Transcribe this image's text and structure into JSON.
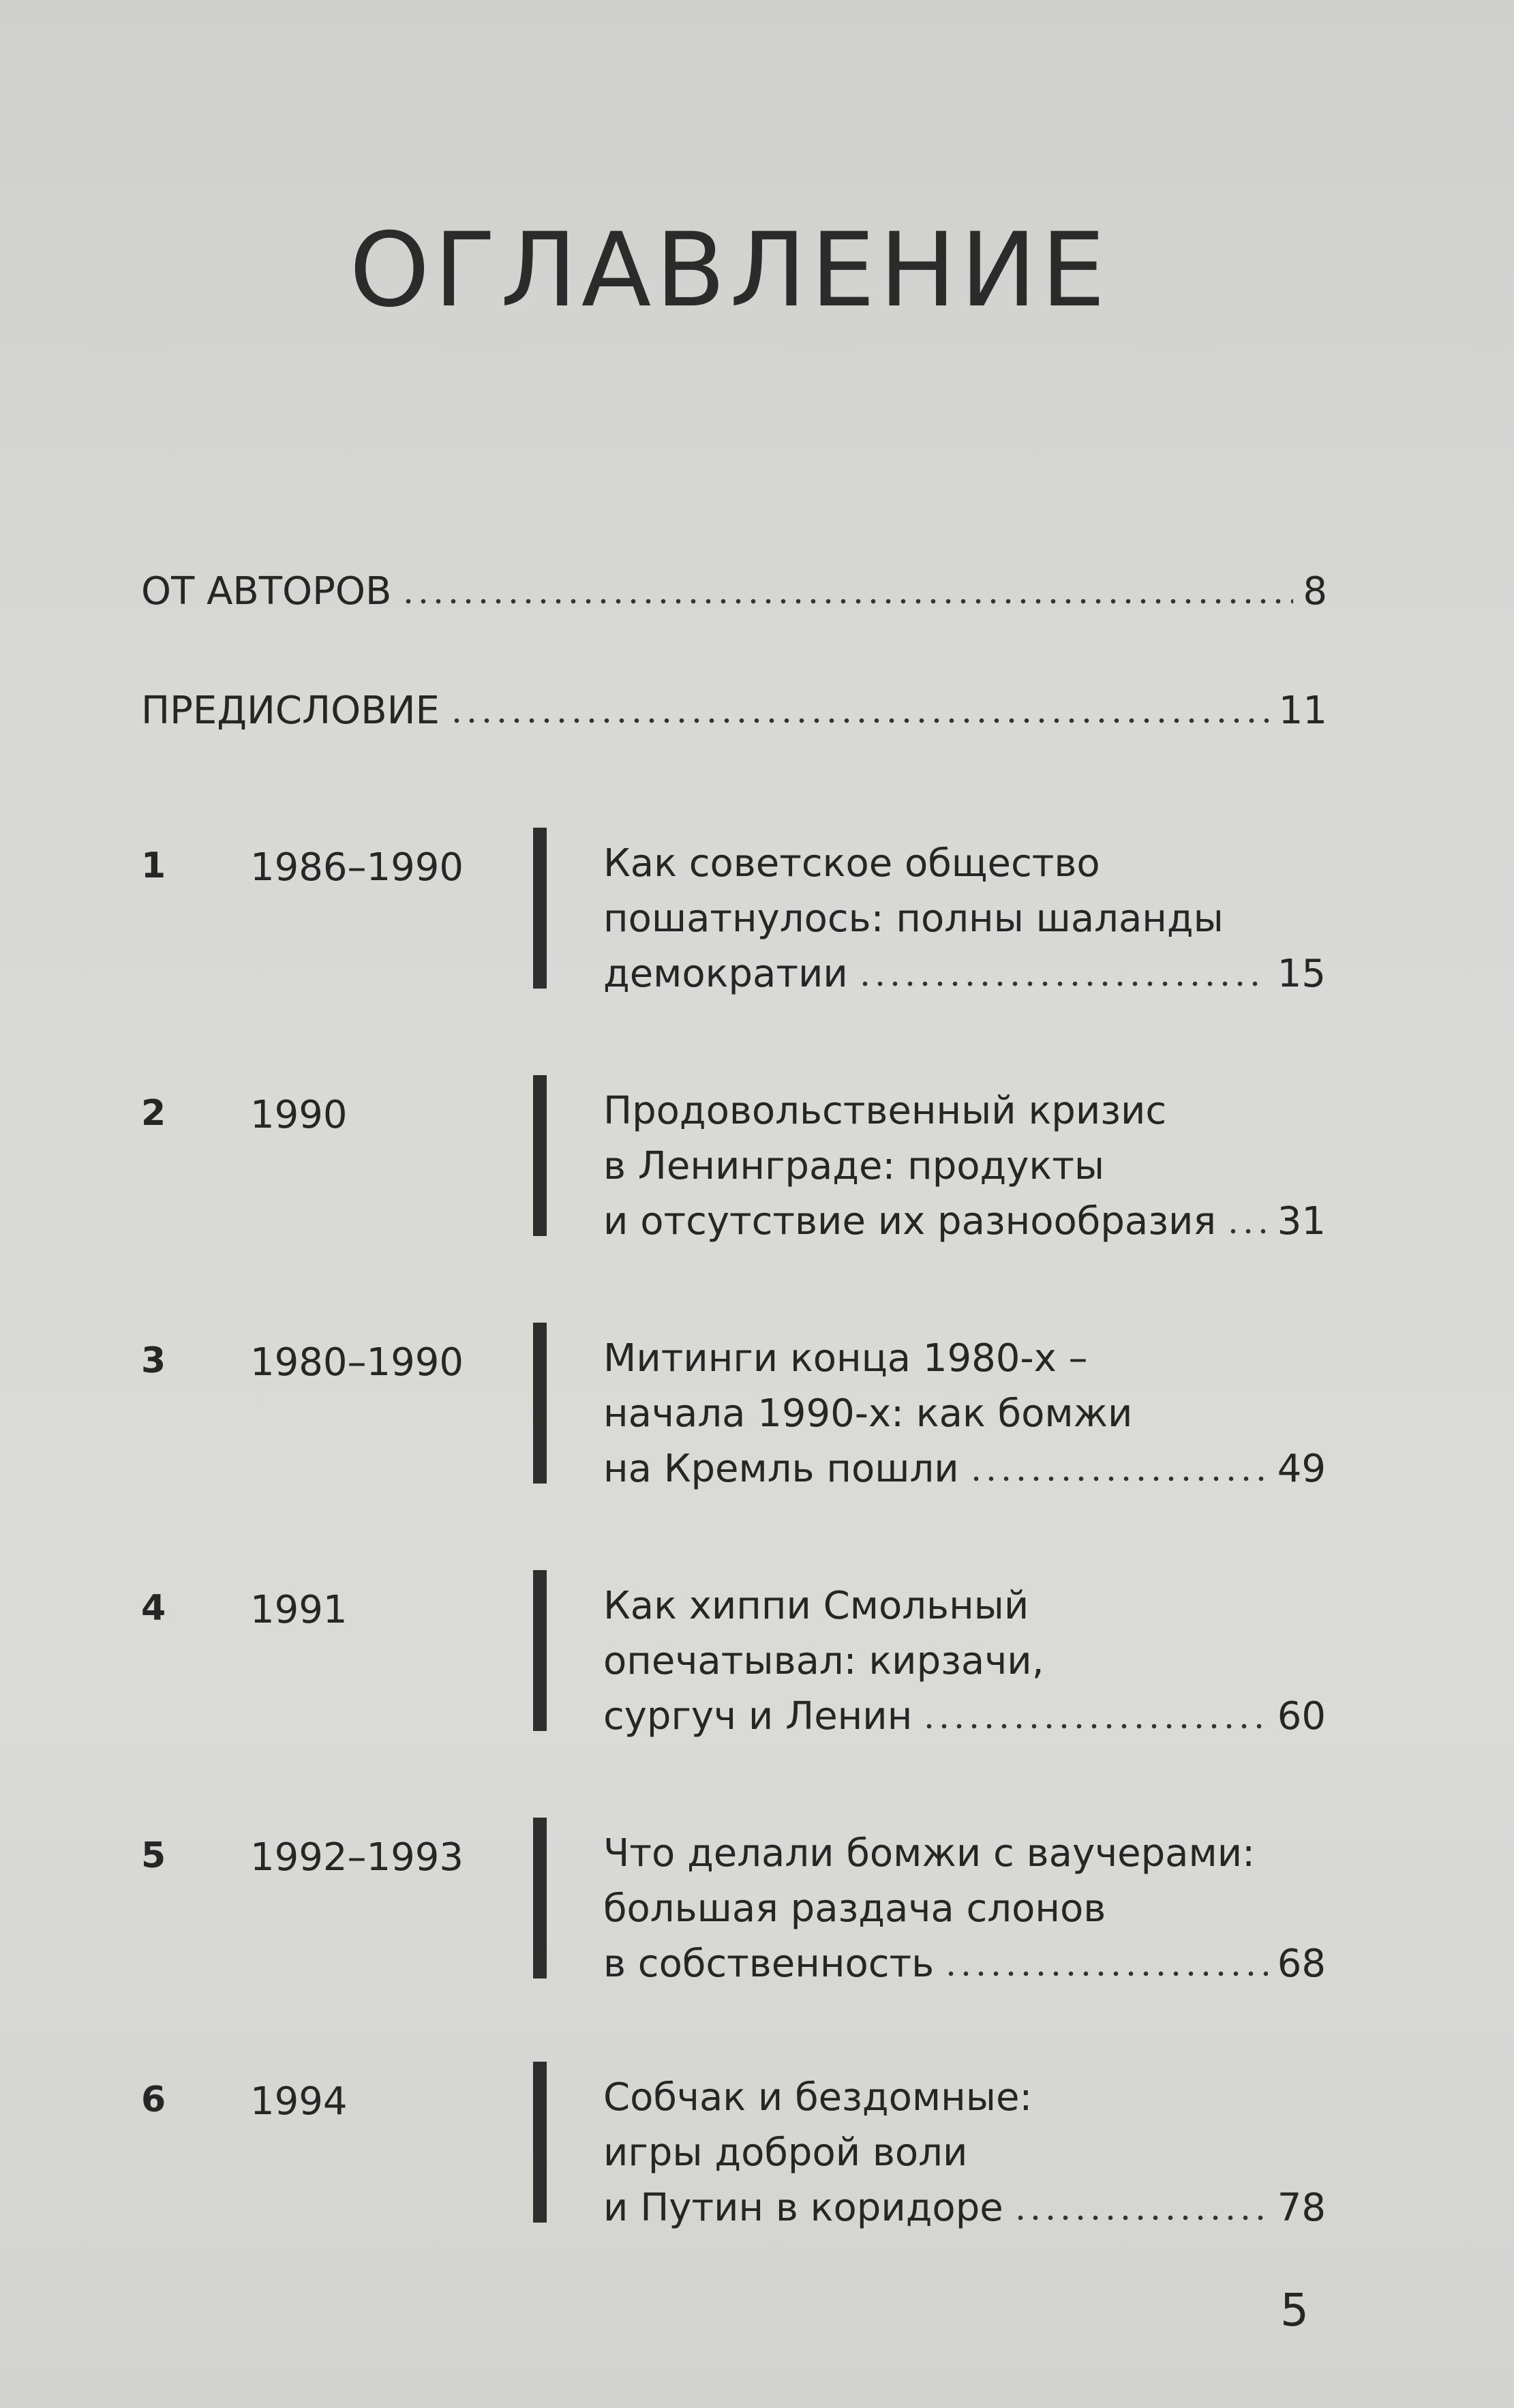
{
  "title": "ОГЛАВЛЕНИЕ",
  "front": [
    {
      "label": "ОТ АВТОРОВ",
      "page": "8"
    },
    {
      "label": "ПРЕДИСЛОВИЕ",
      "page": "11"
    }
  ],
  "chapters": [
    {
      "num": "1",
      "year": "1986–1990",
      "lines": [
        "Как советское общество",
        "пошатнулось: полны шаланды",
        "демократии"
      ],
      "page": "15"
    },
    {
      "num": "2",
      "year": "1990",
      "lines": [
        "Продовольственный кризис",
        "в Ленинграде: продукты",
        "и отсутствие их разнообразия"
      ],
      "page": "31"
    },
    {
      "num": "3",
      "year": "1980–1990",
      "lines": [
        "Митинги конца 1980-х –",
        "начала 1990-х: как бомжи",
        "на Кремль пошли"
      ],
      "page": "49"
    },
    {
      "num": "4",
      "year": "1991",
      "lines": [
        "Как хиппи Смольный",
        "опечатывал: кирзачи,",
        "сургуч и Ленин"
      ],
      "page": "60"
    },
    {
      "num": "5",
      "year": "1992–1993",
      "lines": [
        "Что делали бомжи с ваучерами:",
        "большая раздача слонов",
        "в собственность"
      ],
      "page": "68"
    },
    {
      "num": "6",
      "year": "1994",
      "lines": [
        "Собчак и бездомные:",
        "игры доброй воли",
        "и Путин в коридоре"
      ],
      "page": "78"
    }
  ],
  "folio": "5"
}
